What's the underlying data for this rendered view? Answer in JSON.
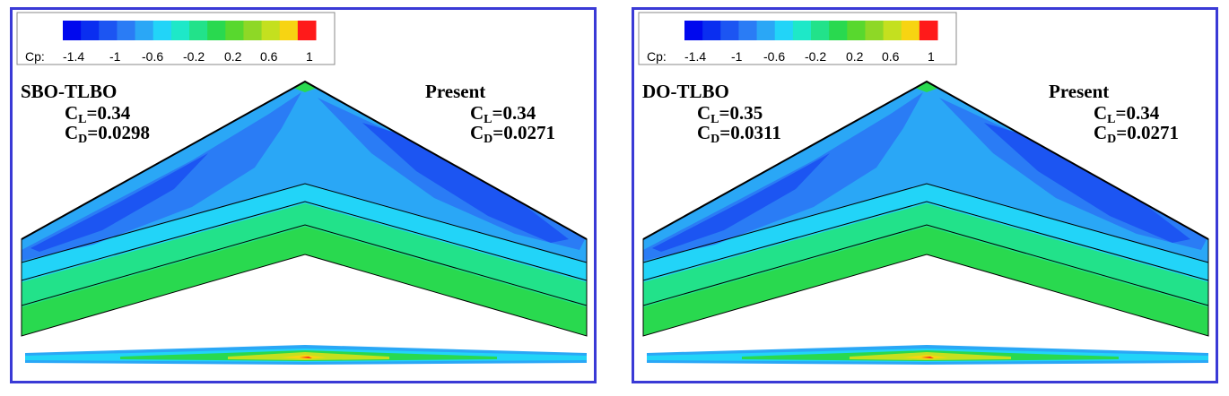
{
  "colorbar": {
    "label": "Cp:",
    "ticks": [
      "-1.4",
      "-1",
      "-0.6",
      "-0.2",
      "0.2",
      "0.6",
      "1"
    ],
    "colors": [
      "#0008ee",
      "#0a2ef0",
      "#1c55f2",
      "#2a7cf5",
      "#2aa7f6",
      "#22d4f8",
      "#1ee8c8",
      "#22e28a",
      "#29d94f",
      "#58d82e",
      "#8ed826",
      "#c4e01f",
      "#f7d412",
      "#ff1a1a"
    ]
  },
  "panels": [
    {
      "method": "SBO-TLBO",
      "cl_label": "C",
      "cl_sub": "L",
      "cl_value": "=0.34",
      "cd_label": "C",
      "cd_sub": "D",
      "cd_value": "=0.0298",
      "present_label": "Present",
      "present_cl_label": "C",
      "present_cl_sub": "L",
      "present_cl_value": "=0.34",
      "present_cd_label": "C",
      "present_cd_sub": "D",
      "present_cd_value": "=0.0271"
    },
    {
      "method": "DO-TLBO",
      "cl_label": "C",
      "cl_sub": "L",
      "cl_value": "=0.35",
      "cd_label": "C",
      "cd_sub": "D",
      "cd_value": "=0.0311",
      "present_label": "Present",
      "present_cl_label": "C",
      "present_cl_sub": "L",
      "present_cl_value": "=0.34",
      "present_cd_label": "C",
      "present_cd_sub": "D",
      "present_cd_value": "=0.0271"
    }
  ]
}
